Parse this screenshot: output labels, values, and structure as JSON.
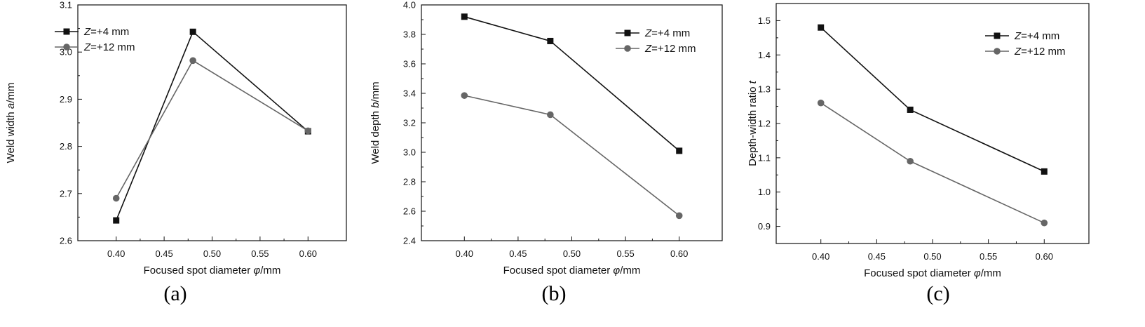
{
  "chart_data": [
    {
      "type": "line",
      "panel_label": "(a)",
      "xlabel": "Focused spot diameter φ/mm",
      "ylabel": "Weld width a/mm",
      "x": [
        0.4,
        0.48,
        0.6
      ],
      "xlim": [
        0.36,
        0.64
      ],
      "xticks": [
        "0.40",
        "0.45",
        "0.50",
        "0.55",
        "0.60"
      ],
      "ylim": [
        2.6,
        3.1
      ],
      "yticks": [
        "2.6",
        "2.7",
        "2.8",
        "2.9",
        "3.0",
        "3.1"
      ],
      "legend_position": "top-left",
      "grid": false,
      "series": [
        {
          "name": "Z=+4 mm",
          "values": [
            2.643,
            3.043,
            2.832
          ],
          "color": "#111111",
          "marker": "square"
        },
        {
          "name": "Z=+12 mm",
          "values": [
            2.69,
            2.982,
            2.833
          ],
          "color": "#666666",
          "marker": "circle"
        }
      ]
    },
    {
      "type": "line",
      "panel_label": "(b)",
      "xlabel": "Focused spot diameter φ/mm",
      "ylabel": "Weld depth b/mm",
      "x": [
        0.4,
        0.48,
        0.6
      ],
      "xlim": [
        0.36,
        0.64
      ],
      "xticks": [
        "0.40",
        "0.45",
        "0.50",
        "0.55",
        "0.60"
      ],
      "ylim": [
        2.4,
        4.0
      ],
      "yticks": [
        "2.4",
        "2.6",
        "2.8",
        "3.0",
        "3.2",
        "3.4",
        "3.6",
        "3.8",
        "4.0"
      ],
      "legend_position": "top-right",
      "grid": false,
      "series": [
        {
          "name": "Z=+4 mm",
          "values": [
            3.92,
            3.755,
            3.01
          ],
          "color": "#111111",
          "marker": "square"
        },
        {
          "name": "Z=+12 mm",
          "values": [
            3.385,
            3.255,
            2.57
          ],
          "color": "#666666",
          "marker": "circle"
        }
      ]
    },
    {
      "type": "line",
      "panel_label": "(c)",
      "xlabel": "Focused spot diameter φ/mm",
      "ylabel": "Depth-width ratio t",
      "x": [
        0.4,
        0.48,
        0.6
      ],
      "xlim": [
        0.36,
        0.64
      ],
      "xticks": [
        "0.40",
        "0.45",
        "0.50",
        "0.55",
        "0.60"
      ],
      "ylim": [
        0.85,
        1.55
      ],
      "yticks": [
        "0.9",
        "1.0",
        "1.1",
        "1.2",
        "1.3",
        "1.4",
        "1.5"
      ],
      "legend_position": "top-right",
      "grid": false,
      "series": [
        {
          "name": "Z=+4 mm",
          "values": [
            1.48,
            1.24,
            1.06
          ],
          "color": "#111111",
          "marker": "square"
        },
        {
          "name": "Z=+12 mm",
          "values": [
            1.26,
            1.09,
            0.91
          ],
          "color": "#666666",
          "marker": "circle"
        }
      ]
    }
  ]
}
